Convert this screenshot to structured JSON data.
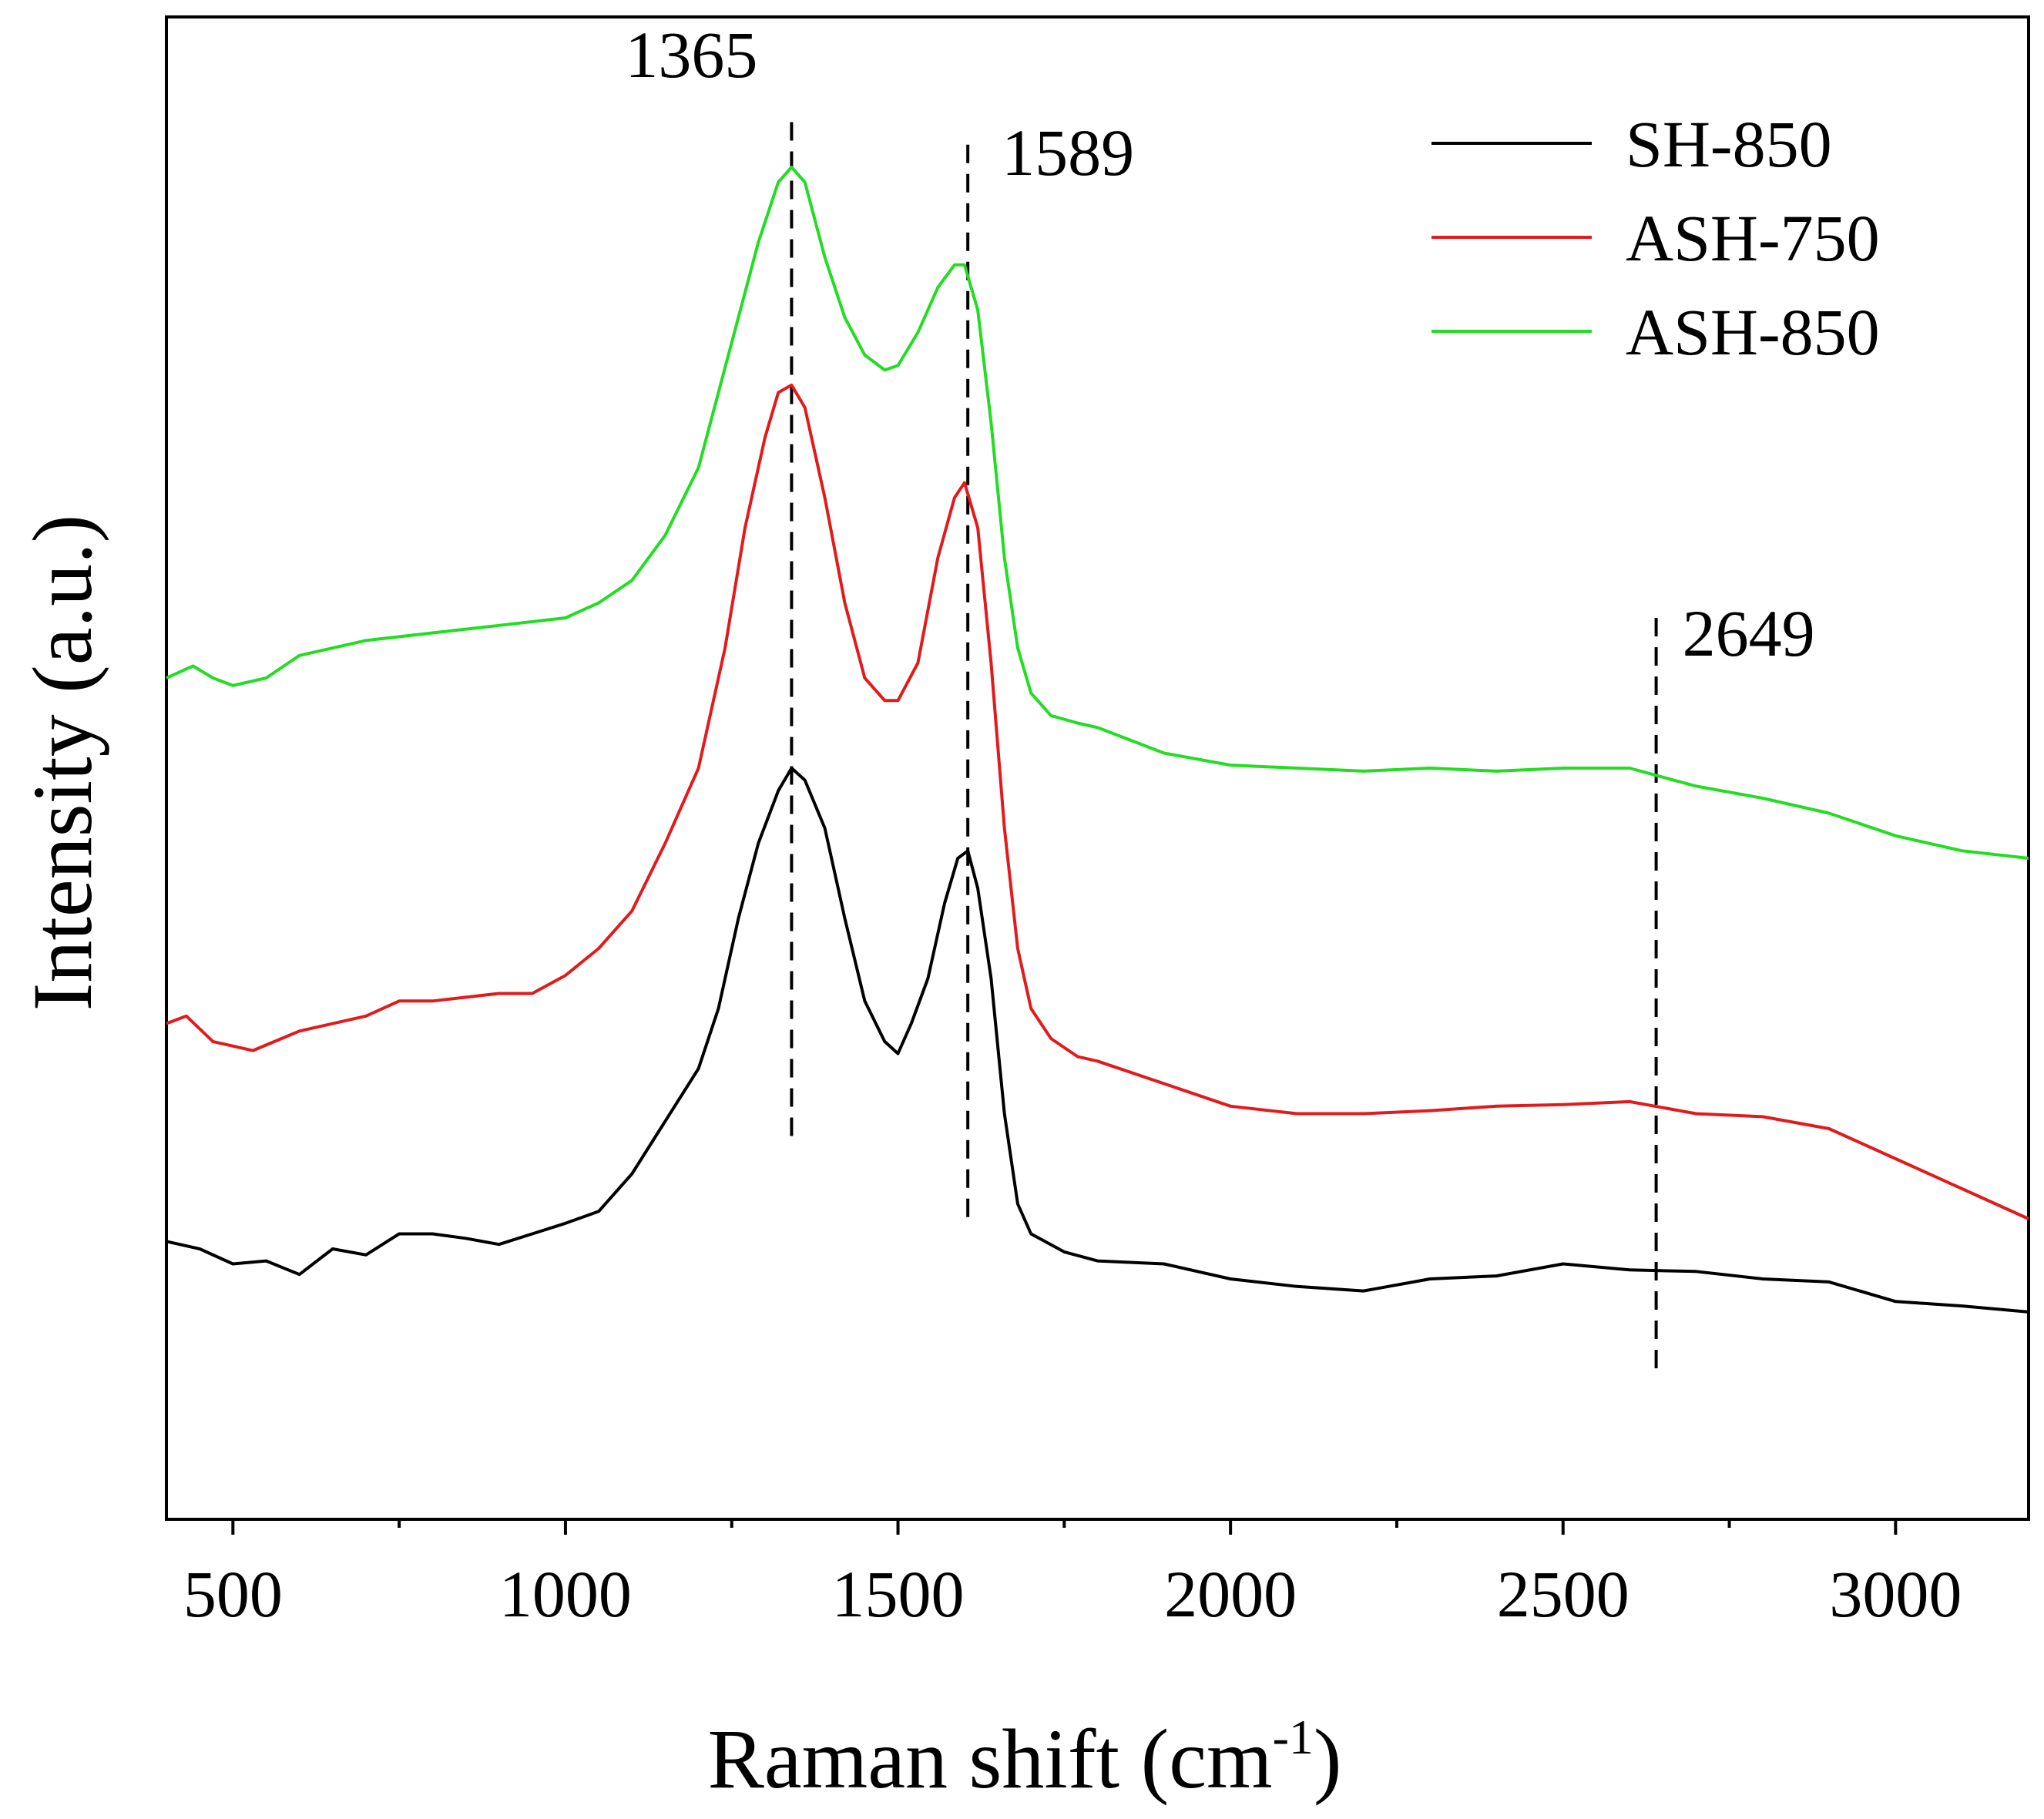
{
  "chart_data": {
    "type": "line",
    "title": "",
    "xlabel": "Raman shift (cm",
    "xlabel_sup": "-1",
    "xlabel_suffix": ")",
    "ylabel": "Intensity (a.u.)",
    "xlim": [
      400,
      3200
    ],
    "ylim": [
      0,
      1
    ],
    "x_ticks": [
      500,
      1000,
      1500,
      2000,
      2500,
      3000
    ],
    "x_tick_labels": [
      "500",
      "1000",
      "1500",
      "2000",
      "2500",
      "3000"
    ],
    "x_minor_ticks": [
      750,
      1250,
      1750,
      2250,
      2750
    ],
    "yticks_shown": false,
    "legend_position": "top-right",
    "series": [
      {
        "name": "SH-850",
        "color": "#000000",
        "points": [
          [
            400,
            0.185
          ],
          [
            450,
            0.18
          ],
          [
            500,
            0.17
          ],
          [
            550,
            0.172
          ],
          [
            600,
            0.163
          ],
          [
            650,
            0.18
          ],
          [
            700,
            0.176
          ],
          [
            750,
            0.19
          ],
          [
            800,
            0.19
          ],
          [
            850,
            0.187
          ],
          [
            900,
            0.183
          ],
          [
            950,
            0.19
          ],
          [
            1000,
            0.197
          ],
          [
            1050,
            0.205
          ],
          [
            1100,
            0.23
          ],
          [
            1150,
            0.265
          ],
          [
            1200,
            0.3
          ],
          [
            1230,
            0.34
          ],
          [
            1260,
            0.4
          ],
          [
            1290,
            0.45
          ],
          [
            1320,
            0.485
          ],
          [
            1340,
            0.5
          ],
          [
            1360,
            0.492
          ],
          [
            1390,
            0.46
          ],
          [
            1420,
            0.4
          ],
          [
            1450,
            0.345
          ],
          [
            1480,
            0.318
          ],
          [
            1500,
            0.31
          ],
          [
            1520,
            0.33
          ],
          [
            1545,
            0.36
          ],
          [
            1570,
            0.41
          ],
          [
            1590,
            0.44
          ],
          [
            1605,
            0.445
          ],
          [
            1620,
            0.42
          ],
          [
            1640,
            0.36
          ],
          [
            1660,
            0.27
          ],
          [
            1680,
            0.21
          ],
          [
            1700,
            0.19
          ],
          [
            1750,
            0.178
          ],
          [
            1800,
            0.172
          ],
          [
            1900,
            0.17
          ],
          [
            2000,
            0.16
          ],
          [
            2100,
            0.155
          ],
          [
            2200,
            0.152
          ],
          [
            2300,
            0.16
          ],
          [
            2400,
            0.162
          ],
          [
            2500,
            0.17
          ],
          [
            2600,
            0.166
          ],
          [
            2700,
            0.165
          ],
          [
            2800,
            0.16
          ],
          [
            2900,
            0.158
          ],
          [
            3000,
            0.145
          ],
          [
            3100,
            0.142
          ],
          [
            3200,
            0.138
          ]
        ]
      },
      {
        "name": "ASH-750",
        "color": "#e31a1c",
        "points": [
          [
            400,
            0.33
          ],
          [
            430,
            0.335
          ],
          [
            470,
            0.318
          ],
          [
            530,
            0.312
          ],
          [
            600,
            0.325
          ],
          [
            700,
            0.335
          ],
          [
            750,
            0.345
          ],
          [
            800,
            0.345
          ],
          [
            900,
            0.35
          ],
          [
            950,
            0.35
          ],
          [
            1000,
            0.362
          ],
          [
            1050,
            0.38
          ],
          [
            1100,
            0.405
          ],
          [
            1150,
            0.45
          ],
          [
            1200,
            0.5
          ],
          [
            1240,
            0.58
          ],
          [
            1270,
            0.66
          ],
          [
            1300,
            0.72
          ],
          [
            1320,
            0.75
          ],
          [
            1340,
            0.755
          ],
          [
            1360,
            0.74
          ],
          [
            1390,
            0.68
          ],
          [
            1420,
            0.61
          ],
          [
            1450,
            0.56
          ],
          [
            1480,
            0.545
          ],
          [
            1500,
            0.545
          ],
          [
            1530,
            0.57
          ],
          [
            1560,
            0.64
          ],
          [
            1585,
            0.68
          ],
          [
            1600,
            0.69
          ],
          [
            1620,
            0.66
          ],
          [
            1640,
            0.57
          ],
          [
            1660,
            0.46
          ],
          [
            1680,
            0.38
          ],
          [
            1700,
            0.34
          ],
          [
            1730,
            0.32
          ],
          [
            1770,
            0.308
          ],
          [
            1800,
            0.305
          ],
          [
            1900,
            0.29
          ],
          [
            2000,
            0.275
          ],
          [
            2100,
            0.27
          ],
          [
            2200,
            0.27
          ],
          [
            2300,
            0.272
          ],
          [
            2400,
            0.275
          ],
          [
            2500,
            0.276
          ],
          [
            2600,
            0.278
          ],
          [
            2700,
            0.27
          ],
          [
            2800,
            0.268
          ],
          [
            2900,
            0.26
          ],
          [
            3000,
            0.24
          ],
          [
            3100,
            0.22
          ],
          [
            3200,
            0.2
          ]
        ]
      },
      {
        "name": "ASH-850",
        "color": "#22dd22",
        "points": [
          [
            400,
            0.56
          ],
          [
            440,
            0.568
          ],
          [
            470,
            0.56
          ],
          [
            500,
            0.555
          ],
          [
            550,
            0.56
          ],
          [
            600,
            0.575
          ],
          [
            700,
            0.585
          ],
          [
            800,
            0.59
          ],
          [
            900,
            0.595
          ],
          [
            1000,
            0.6
          ],
          [
            1050,
            0.61
          ],
          [
            1100,
            0.625
          ],
          [
            1150,
            0.655
          ],
          [
            1200,
            0.7
          ],
          [
            1230,
            0.75
          ],
          [
            1260,
            0.8
          ],
          [
            1290,
            0.85
          ],
          [
            1320,
            0.89
          ],
          [
            1340,
            0.9
          ],
          [
            1360,
            0.89
          ],
          [
            1390,
            0.84
          ],
          [
            1420,
            0.8
          ],
          [
            1450,
            0.775
          ],
          [
            1480,
            0.765
          ],
          [
            1500,
            0.768
          ],
          [
            1530,
            0.79
          ],
          [
            1560,
            0.82
          ],
          [
            1585,
            0.835
          ],
          [
            1600,
            0.835
          ],
          [
            1620,
            0.805
          ],
          [
            1640,
            0.73
          ],
          [
            1660,
            0.64
          ],
          [
            1680,
            0.58
          ],
          [
            1700,
            0.55
          ],
          [
            1730,
            0.535
          ],
          [
            1770,
            0.53
          ],
          [
            1800,
            0.527
          ],
          [
            1900,
            0.51
          ],
          [
            2000,
            0.502
          ],
          [
            2100,
            0.5
          ],
          [
            2200,
            0.498
          ],
          [
            2300,
            0.5
          ],
          [
            2400,
            0.498
          ],
          [
            2500,
            0.5
          ],
          [
            2600,
            0.5
          ],
          [
            2700,
            0.488
          ],
          [
            2800,
            0.48
          ],
          [
            2900,
            0.47
          ],
          [
            3000,
            0.455
          ],
          [
            3100,
            0.445
          ],
          [
            3200,
            0.44
          ]
        ]
      }
    ],
    "annotations": [
      {
        "label": "1365",
        "x": 1340,
        "y_top": 0.93,
        "y_bottom": 0.25
      },
      {
        "label": "1589",
        "x": 1605,
        "y_top": 0.915,
        "y_bottom": 0.2
      },
      {
        "label": "2649",
        "x": 2640,
        "y_top": 0.6,
        "y_bottom": 0.095
      }
    ]
  }
}
